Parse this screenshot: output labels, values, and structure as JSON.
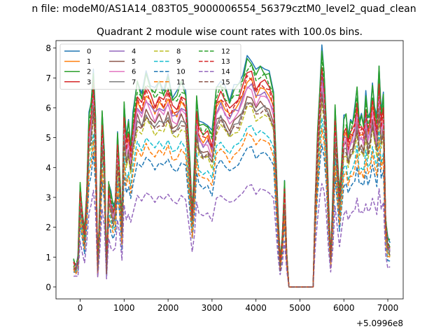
{
  "chart_data": {
    "type": "line",
    "suptitle": "n file: modeM0/AS1A14_083T05_9000006554_56379cztM0_level2_quad_clean",
    "title": "Quadrant 2 module wise count rates with 100.0s bins.",
    "xlabel": "",
    "ylabel": "",
    "x_offset_label": "+5.0996e8",
    "xlim": [
      -550,
      7350
    ],
    "ylim": [
      -0.4,
      8.25
    ],
    "xticks": [
      0,
      1000,
      2000,
      3000,
      4000,
      5000,
      6000,
      7000
    ],
    "xtick_labels": [
      "0",
      "1000",
      "2000",
      "3000",
      "4000",
      "5000",
      "6000",
      "7000"
    ],
    "yticks": [
      0,
      1,
      2,
      3,
      4,
      5,
      6,
      7,
      8
    ],
    "ytick_labels": [
      "0",
      "1",
      "2",
      "3",
      "4",
      "5",
      "6",
      "7",
      "8"
    ],
    "legend_position": "upper-left",
    "legend_columns": 4,
    "x": [
      -150,
      -100,
      -50,
      0,
      50,
      100,
      150,
      200,
      250,
      300,
      350,
      400,
      450,
      500,
      550,
      600,
      650,
      700,
      750,
      800,
      850,
      900,
      950,
      1000,
      1050,
      1100,
      1150,
      1200,
      1300,
      1400,
      1500,
      1600,
      1700,
      1800,
      1900,
      2000,
      2100,
      2200,
      2300,
      2400,
      2500,
      2550,
      2600,
      2650,
      2700,
      2800,
      2900,
      3000,
      3100,
      3200,
      3300,
      3400,
      3500,
      3600,
      3700,
      3800,
      3900,
      4000,
      4100,
      4200,
      4300,
      4400,
      4500,
      4550,
      4600,
      4650,
      4700,
      4750,
      4800,
      4900,
      5000,
      5100,
      5200,
      5300,
      5350,
      5400,
      5450,
      5500,
      5550,
      5600,
      5650,
      5700,
      5750,
      5800,
      5850,
      5900,
      5950,
      6000,
      6050,
      6100,
      6150,
      6200,
      6250,
      6300,
      6350,
      6400,
      6450,
      6500,
      6550,
      6600,
      6650,
      6700,
      6750,
      6800,
      6850,
      6900,
      6950,
      7000,
      7050
    ],
    "series": [
      {
        "name": "0",
        "color": "#1f77b4",
        "dash": false,
        "scale": 1.02,
        "deltas": [
          0.1,
          -0.1,
          0.15,
          0.05,
          -0.05
        ]
      },
      {
        "name": "1",
        "color": "#ff7f0e",
        "dash": false,
        "scale": 0.92,
        "deltas": [
          -0.05,
          0.1,
          -0.1,
          0.05,
          0.0
        ]
      },
      {
        "name": "2",
        "color": "#2ca02c",
        "dash": false,
        "scale": 1.0,
        "deltas": [
          0.15,
          -0.05,
          0.1,
          0.2,
          -0.1
        ]
      },
      {
        "name": "3",
        "color": "#d62728",
        "dash": false,
        "scale": 0.95,
        "deltas": [
          0.05,
          0.1,
          -0.05,
          0.0,
          0.1
        ]
      },
      {
        "name": "4",
        "color": "#9467bd",
        "dash": false,
        "scale": 0.9,
        "deltas": [
          -0.1,
          0.05,
          0.1,
          -0.05,
          0.05
        ]
      },
      {
        "name": "5",
        "color": "#8c564b",
        "dash": false,
        "scale": 0.85,
        "deltas": [
          0.0,
          -0.05,
          0.05,
          0.1,
          -0.1
        ]
      },
      {
        "name": "6",
        "color": "#e377c2",
        "dash": false,
        "scale": 0.88,
        "deltas": [
          0.1,
          0.0,
          -0.1,
          0.05,
          0.05
        ]
      },
      {
        "name": "7",
        "color": "#7f7f7f",
        "dash": false,
        "scale": 0.83,
        "deltas": [
          -0.05,
          -0.1,
          0.05,
          0.0,
          0.1
        ]
      },
      {
        "name": "8",
        "color": "#bcbd22",
        "dash": true,
        "scale": 0.8,
        "deltas": [
          0.05,
          0.05,
          -0.05,
          -0.1,
          0.0
        ]
      },
      {
        "name": "9",
        "color": "#17becf",
        "dash": true,
        "scale": 0.72,
        "deltas": [
          -0.05,
          0.0,
          0.05,
          0.05,
          -0.05
        ]
      },
      {
        "name": "10",
        "color": "#1f77b4",
        "dash": true,
        "scale": 0.62,
        "deltas": [
          0.0,
          0.05,
          -0.05,
          0.0,
          0.05
        ]
      },
      {
        "name": "11",
        "color": "#ff7f0e",
        "dash": true,
        "scale": 0.68,
        "deltas": [
          0.05,
          -0.05,
          0.0,
          0.05,
          0.0
        ]
      },
      {
        "name": "12",
        "color": "#2ca02c",
        "dash": true,
        "scale": 0.98,
        "deltas": [
          -0.1,
          0.1,
          0.05,
          -0.05,
          0.1
        ]
      },
      {
        "name": "13",
        "color": "#d62728",
        "dash": true,
        "scale": 0.93,
        "deltas": [
          0.1,
          -0.05,
          0.0,
          0.1,
          -0.05
        ]
      },
      {
        "name": "14",
        "color": "#9467bd",
        "dash": true,
        "scale": 0.45,
        "deltas": [
          0.0,
          0.05,
          -0.05,
          0.05,
          0.0
        ]
      },
      {
        "name": "15",
        "color": "#8c564b",
        "dash": true,
        "scale": 0.82,
        "deltas": [
          -0.05,
          0.05,
          0.05,
          -0.1,
          0.05
        ]
      }
    ],
    "base_profile": [
      0.8,
      0.7,
      0.9,
      3.3,
      2.5,
      1.8,
      3.2,
      5.6,
      6.0,
      7.2,
      5.5,
      0.6,
      3.0,
      5.7,
      4.5,
      0.6,
      3.5,
      3.0,
      2.6,
      2.9,
      5.0,
      3.8,
      2.1,
      6.0,
      5.0,
      5.4,
      4.7,
      5.6,
      6.7,
      6.4,
      7.0,
      6.7,
      6.4,
      6.7,
      6.5,
      6.9,
      6.3,
      6.3,
      6.7,
      6.5,
      4.0,
      2.5,
      4.0,
      6.2,
      5.5,
      5.3,
      5.4,
      5.0,
      6.5,
      6.8,
      6.5,
      6.2,
      6.5,
      6.6,
      7.0,
      7.5,
      7.5,
      7.0,
      7.2,
      7.2,
      7.0,
      6.5,
      2.4,
      0.8,
      1.7,
      3.4,
      1.1,
      0.0,
      0.0,
      0.0,
      0.0,
      0.0,
      0.0,
      0.0,
      3.0,
      5.0,
      6.5,
      7.8,
      7.0,
      5.5,
      2.8,
      1.0,
      3.0,
      5.9,
      4.5,
      3.0,
      4.2,
      5.5,
      5.6,
      5.0,
      5.4,
      5.5,
      5.8,
      6.5,
      5.5,
      5.6,
      5.4,
      6.3,
      5.5,
      5.8,
      6.6,
      6.0,
      5.5,
      7.2,
      5.8,
      6.3,
      2.3,
      1.5,
      1.4
    ]
  }
}
